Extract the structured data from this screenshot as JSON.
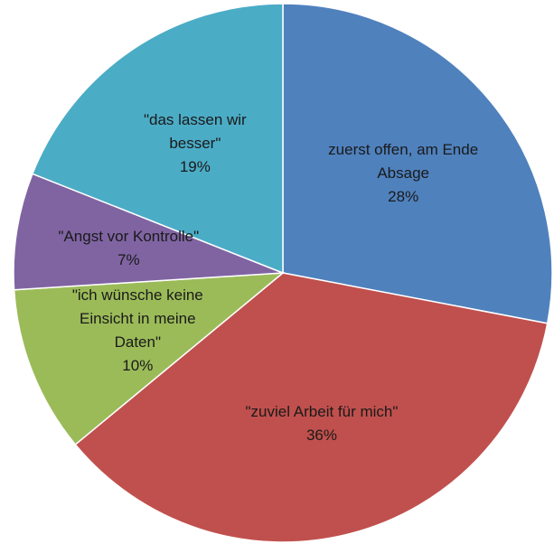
{
  "chart_data": {
    "type": "pie",
    "categories": [
      "zuerst offen, am Ende Absage",
      "\"zuviel Arbeit für mich\"",
      "\"ich wünsche keine Einsicht in meine Daten\"",
      "\"Angst vor Kontrolle\"",
      "\"das lassen wir besser\""
    ],
    "values": [
      28,
      36,
      10,
      7,
      19
    ],
    "value_labels": [
      "28%",
      "36%",
      "10%",
      "7%",
      "19%"
    ],
    "colors": [
      "#4f81bd",
      "#c0504d",
      "#9bbb59",
      "#8064a2",
      "#4bacc6"
    ]
  }
}
